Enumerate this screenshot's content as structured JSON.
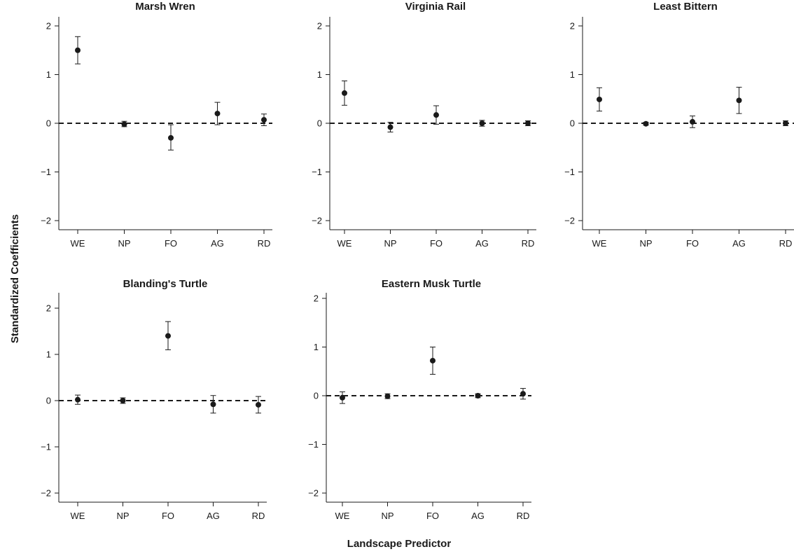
{
  "figure": {
    "ylabel": "Standardized Coefficients",
    "xlabel": "Landscape Predictor"
  },
  "chart_data": [
    {
      "type": "scatter",
      "title": "Marsh Wren",
      "categories": [
        "WE",
        "NP",
        "FO",
        "AG",
        "RD"
      ],
      "values": [
        1.5,
        -0.02,
        -0.3,
        0.2,
        0.07
      ],
      "error_low": [
        1.22,
        -0.07,
        -0.55,
        -0.03,
        -0.05
      ],
      "error_high": [
        1.78,
        0.04,
        -0.03,
        0.43,
        0.19
      ],
      "ylim": [
        -2.2,
        2.2
      ],
      "yticks": [
        "−2",
        "−1",
        "0",
        "1",
        "2"
      ],
      "reference_line": 0
    },
    {
      "type": "scatter",
      "title": "Virginia Rail",
      "categories": [
        "WE",
        "NP",
        "FO",
        "AG",
        "RD"
      ],
      "values": [
        0.62,
        -0.08,
        0.17,
        0.0,
        0.0
      ],
      "error_low": [
        0.37,
        -0.18,
        -0.02,
        -0.06,
        -0.05
      ],
      "error_high": [
        0.87,
        0.02,
        0.36,
        0.06,
        0.05
      ],
      "ylim": [
        -2.2,
        2.2
      ],
      "yticks": [
        "−2",
        "−1",
        "0",
        "1",
        "2"
      ],
      "reference_line": 0
    },
    {
      "type": "scatter",
      "title": "Least Bittern",
      "categories": [
        "WE",
        "NP",
        "FO",
        "AG",
        "RD"
      ],
      "values": [
        0.49,
        -0.01,
        0.03,
        0.47,
        0.0
      ],
      "error_low": [
        0.25,
        -0.04,
        -0.09,
        0.2,
        -0.05
      ],
      "error_high": [
        0.73,
        0.02,
        0.15,
        0.74,
        0.05
      ],
      "ylim": [
        -2.2,
        2.2
      ],
      "yticks": [
        "−2",
        "−1",
        "0",
        "1",
        "2"
      ],
      "reference_line": 0
    },
    {
      "type": "scatter",
      "title": "Blanding's Turtle",
      "categories": [
        "WE",
        "NP",
        "FO",
        "AG",
        "RD"
      ],
      "values": [
        0.02,
        0.0,
        1.4,
        -0.08,
        -0.09
      ],
      "error_low": [
        -0.08,
        -0.06,
        1.1,
        -0.27,
        -0.27
      ],
      "error_high": [
        0.12,
        0.06,
        1.71,
        0.11,
        0.09
      ],
      "ylim": [
        -2.2,
        2.2
      ],
      "yticks": [
        "−2",
        "−1",
        "0",
        "1",
        "2"
      ],
      "reference_line": 0
    },
    {
      "type": "scatter",
      "title": "Eastern Musk Turtle",
      "categories": [
        "WE",
        "NP",
        "FO",
        "AG",
        "RD"
      ],
      "values": [
        -0.04,
        -0.01,
        0.72,
        0.0,
        0.04
      ],
      "error_low": [
        -0.16,
        -0.06,
        0.44,
        -0.04,
        -0.07
      ],
      "error_high": [
        0.08,
        0.04,
        1.0,
        0.04,
        0.15
      ],
      "ylim": [
        -2.2,
        2.2
      ],
      "yticks": [
        "−2",
        "−1",
        "0",
        "1",
        "2"
      ],
      "reference_line": 0
    }
  ]
}
